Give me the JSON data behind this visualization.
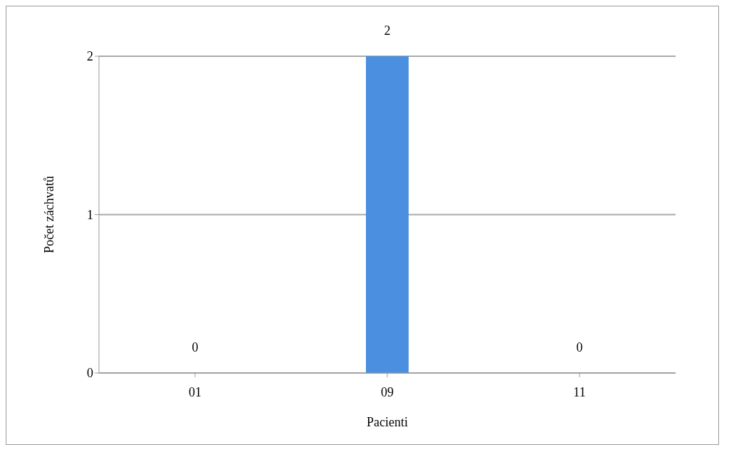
{
  "chart_data": {
    "type": "bar",
    "xlabel": "Pacienti",
    "ylabel": "Počet záchvatů",
    "categories": [
      "01",
      "09",
      "11"
    ],
    "values": [
      0,
      2,
      0
    ],
    "color": "#4a8fe0",
    "ylim": [
      0,
      2
    ],
    "yticks": [
      0,
      1,
      2
    ],
    "grid": "y",
    "data_labels": true
  }
}
